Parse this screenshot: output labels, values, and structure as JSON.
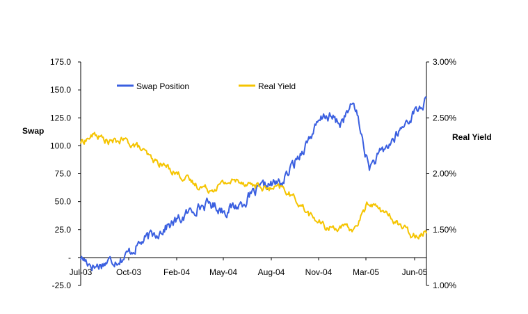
{
  "chart_data": {
    "type": "line",
    "title": "",
    "xlabel": "",
    "y_left_label": "Swap",
    "y_right_label": "Real Yield",
    "x_tick_labels": [
      "Jul-03",
      "Oct-03",
      "Feb-04",
      "May-04",
      "Aug-04",
      "Nov-04",
      "Mar-05",
      "Jun-05"
    ],
    "y_left_ticks": [
      "175.0",
      "150.0",
      "125.0",
      "100.0",
      "75.0",
      "50.0",
      "25.0",
      "-",
      "-25.0"
    ],
    "y_right_ticks": [
      "3.00%",
      "2.50%",
      "2.00%",
      "1.50%",
      "1.00%"
    ],
    "y_left_lim": [
      -25,
      175
    ],
    "y_right_lim": [
      1.0,
      3.0
    ],
    "legend": {
      "position": "top-left",
      "entries": [
        "Swap Position",
        "Real Yield"
      ]
    },
    "grid": false,
    "series": [
      {
        "name": "Swap Position",
        "axis": "left",
        "color": "#3a5fe0",
        "x": [
          "Jul-03",
          "Aug-03",
          "Sep-03",
          "Oct-03",
          "Nov-03",
          "Dec-03",
          "Jan-04",
          "Feb-04",
          "Mar-04",
          "Apr-04",
          "May-04",
          "Jun-04",
          "Jul-04",
          "Aug-04",
          "Sep-04",
          "Oct-04",
          "Nov-04",
          "Dec-04",
          "Jan-05",
          "Feb-05",
          "Mar-05",
          "Apr-05",
          "May-05",
          "Jun-05",
          "Jul-05"
        ],
        "values": [
          0,
          -8,
          -3,
          0,
          12,
          20,
          28,
          35,
          45,
          48,
          42,
          47,
          57,
          65,
          67,
          88,
          110,
          128,
          120,
          138,
          80,
          95,
          110,
          128,
          140
        ]
      },
      {
        "name": "Real Yield",
        "axis": "right",
        "color": "#f5c400",
        "x": [
          "Jul-03",
          "Aug-03",
          "Sep-03",
          "Oct-03",
          "Nov-03",
          "Dec-03",
          "Jan-04",
          "Feb-04",
          "Mar-04",
          "Apr-04",
          "May-04",
          "Jun-04",
          "Jul-04",
          "Aug-04",
          "Sep-04",
          "Oct-04",
          "Nov-04",
          "Dec-04",
          "Jan-05",
          "Feb-05",
          "Mar-05",
          "Apr-05",
          "May-05",
          "Jun-05",
          "Jul-05"
        ],
        "values": [
          2.28,
          2.35,
          2.28,
          2.3,
          2.24,
          2.12,
          2.06,
          1.98,
          1.9,
          1.86,
          1.92,
          1.94,
          1.9,
          1.86,
          1.87,
          1.76,
          1.62,
          1.52,
          1.52,
          1.5,
          1.75,
          1.66,
          1.56,
          1.45,
          1.48
        ]
      }
    ]
  }
}
